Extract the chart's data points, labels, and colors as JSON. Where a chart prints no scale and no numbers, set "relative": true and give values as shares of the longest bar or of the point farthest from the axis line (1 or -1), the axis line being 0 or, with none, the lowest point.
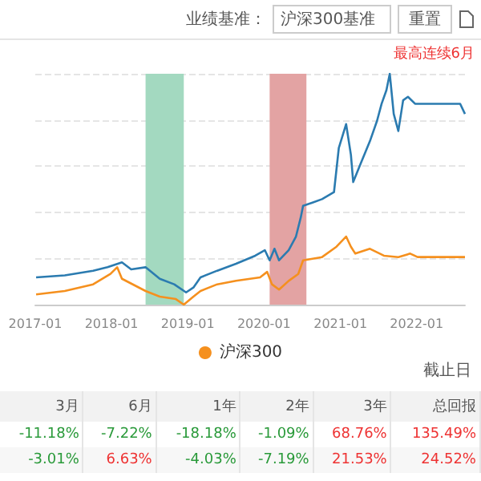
{
  "chart_data": {
    "type": "line",
    "relative": true,
    "legend": "bottom",
    "grid": "y",
    "marker": "none",
    "line_style": "solid",
    "xlim": [
      "2017-01-01",
      "2022-08-20"
    ],
    "xticks": [
      "2017-01",
      "2018-01",
      "2019-01",
      "2020-01",
      "2021-01",
      "2022-01"
    ],
    "series": [
      {
        "color": "#2b7bb0",
        "x": [
          "2017-01-05",
          "2017-05-22",
          "2017-10-05",
          "2017-12-13",
          "2018-02-20",
          "2018-04-05",
          "2018-06-13",
          "2018-08-20",
          "2018-10-28",
          "2018-12-24",
          "2019-01-28",
          "2019-03-03",
          "2019-05-22",
          "2019-08-20",
          "2019-11-20",
          "2020-01-05",
          "2020-01-28",
          "2020-02-20",
          "2020-03-13",
          "2020-04-28",
          "2020-06-02",
          "2020-06-25",
          "2020-07-06",
          "2020-08-20",
          "2020-10-05",
          "2020-12-01",
          "2020-12-24",
          "2021-01-28",
          "2021-02-20",
          "2021-03-03",
          "2021-04-05",
          "2021-05-22",
          "2021-06-25",
          "2021-07-17",
          "2021-08-09",
          "2021-08-25",
          "2021-09-13",
          "2021-10-05",
          "2021-10-28",
          "2021-11-20",
          "2021-12-24",
          "2022-02-20",
          "2022-07-28",
          "2022-08-20"
        ],
        "values": [
          0.118,
          0.127,
          0.147,
          0.162,
          0.183,
          0.153,
          0.162,
          0.112,
          0.088,
          0.053,
          0.074,
          0.118,
          0.147,
          0.177,
          0.212,
          0.236,
          0.192,
          0.242,
          0.192,
          0.236,
          0.295,
          0.378,
          0.428,
          0.442,
          0.457,
          0.487,
          0.678,
          0.782,
          0.649,
          0.531,
          0.605,
          0.708,
          0.796,
          0.87,
          0.929,
          1.0,
          0.826,
          0.752,
          0.885,
          0.9,
          0.87,
          0.87,
          0.87,
          0.826
        ]
      },
      {
        "name": "沪深300",
        "color": "#f5901e",
        "x": [
          "2017-01-05",
          "2017-05-22",
          "2017-10-05",
          "2017-12-27",
          "2018-01-28",
          "2018-02-20",
          "2018-06-13",
          "2018-08-20",
          "2018-11-05",
          "2018-12-13",
          "2019-01-28",
          "2019-03-03",
          "2019-05-22",
          "2019-08-20",
          "2019-12-13",
          "2020-01-16",
          "2020-02-08",
          "2020-03-13",
          "2020-04-28",
          "2020-06-13",
          "2020-07-06",
          "2020-10-05",
          "2020-12-13",
          "2021-01-28",
          "2021-02-20",
          "2021-03-13",
          "2021-05-22",
          "2021-07-28",
          "2021-10-05",
          "2021-12-01",
          "2022-01-05",
          "2022-08-20"
        ],
        "values": [
          0.044,
          0.059,
          0.088,
          0.133,
          0.162,
          0.112,
          0.059,
          0.035,
          0.024,
          0,
          0.035,
          0.059,
          0.088,
          0.103,
          0.118,
          0.142,
          0.088,
          0.065,
          0.103,
          0.133,
          0.192,
          0.206,
          0.251,
          0.295,
          0.251,
          0.221,
          0.242,
          0.212,
          0.206,
          0.221,
          0.206,
          0.206
        ]
      }
    ],
    "bands": [
      {
        "axis": "x",
        "from": "2018-06-13",
        "to": "2018-12-13",
        "color": "#a3d9c0"
      },
      {
        "axis": "x",
        "from": "2020-01-28",
        "to": "2020-07-22",
        "color": "#e3a3a3"
      }
    ],
    "annotations": [
      "业绩基准：",
      "沪深300基准",
      "重置",
      "最高连续6月",
      "截止日",
      "3月",
      "6月",
      "1年",
      "2年",
      "3年",
      "总回报",
      "-11.18%",
      "-7.22%",
      "-18.18%",
      "-1.09%",
      "68.76%",
      "135.49%",
      "-3.01%",
      "6.63%",
      "-4.03%",
      "-7.19%",
      "21.53%",
      "24.52%"
    ]
  }
}
